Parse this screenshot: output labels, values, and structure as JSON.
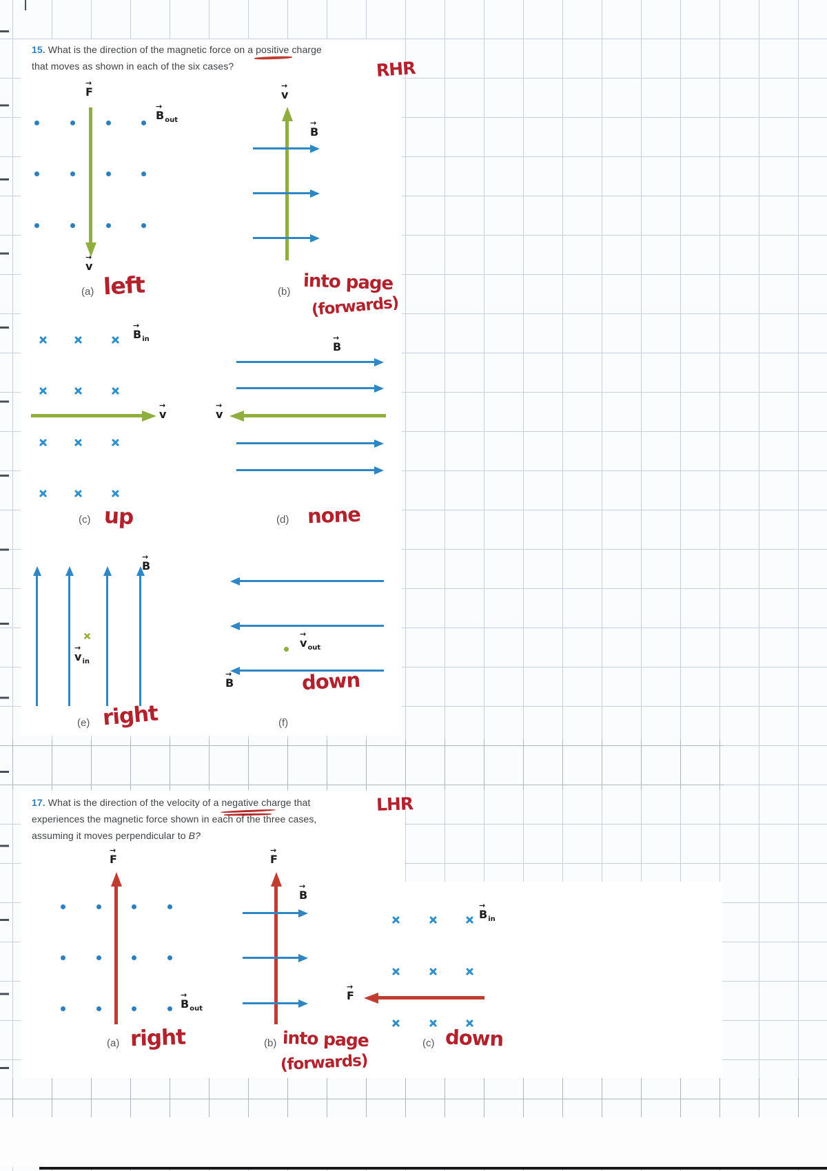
{
  "colors": {
    "grid_line": "#c9cfdc",
    "strip_grid_line": "#9ba2ae",
    "velocity_green": "#8fae3d",
    "field_blue": "#2e86c5",
    "force_red": "#c13b31",
    "ink_red": "#b2222c",
    "question_number_blue": "#2e7fc0",
    "text_dark": "#3e4144"
  },
  "problem15": {
    "number": "15.",
    "q_prefix": "What is the direction of the magnetic force on a",
    "q_underlined": "positive",
    "q_suffix": "charge",
    "q_line2": "that moves as shown in each of the six cases?",
    "annotation": "RHR"
  },
  "problem17": {
    "number": "17.",
    "q_prefix": "What is the direction of the velocity of a",
    "q_underlined": "negative",
    "q_suffix": "charge that",
    "q_line2": "experiences the magnetic force shown in each of the three cases,",
    "q_line3_prefix": "assuming it moves perpendicular to",
    "q_line3_var": "B?",
    "annotation": "LHR"
  },
  "labels": {
    "F": "F",
    "v": "v",
    "B": "B",
    "sub_out": "out",
    "sub_in": "in",
    "fig_a": "(a)",
    "fig_b": "(b)",
    "fig_c": "(c)",
    "fig_d": "(d)",
    "fig_e": "(e)",
    "fig_f": "(f)"
  },
  "answers15": {
    "a": "left",
    "b1": "into page",
    "b2": "(forwards)",
    "c": "up",
    "d": "none",
    "e": "right",
    "f": "down"
  },
  "answers17": {
    "a": "right",
    "b1": "into page",
    "b2": "(forwards)",
    "c": "down"
  },
  "marks": {
    "fig15a-dots": {
      "type": "dot",
      "cols": [
        53,
        105,
        157,
        208
      ],
      "rows": [
        178,
        252,
        327
      ]
    },
    "fig15c-crosses": {
      "type": "cross",
      "cols": [
        62,
        113,
        167
      ],
      "rows": [
        493,
        567,
        642,
        716
      ]
    },
    "fig15e-vcross": {
      "type": "cross",
      "cols": [
        126
      ],
      "rows": [
        923
      ],
      "color": "green"
    },
    "fig15f-vdot": {
      "type": "dot",
      "cols": [
        415
      ],
      "rows": [
        942
      ],
      "color": "green"
    },
    "fig17a-dots": {
      "type": "dot",
      "cols": [
        91,
        143,
        194,
        246
      ],
      "rows": [
        1316,
        1390,
        1464
      ]
    },
    "fig17c-crosses": {
      "type": "cross",
      "cols": [
        574,
        628,
        681
      ],
      "rows": [
        1335,
        1410,
        1485
      ]
    }
  }
}
